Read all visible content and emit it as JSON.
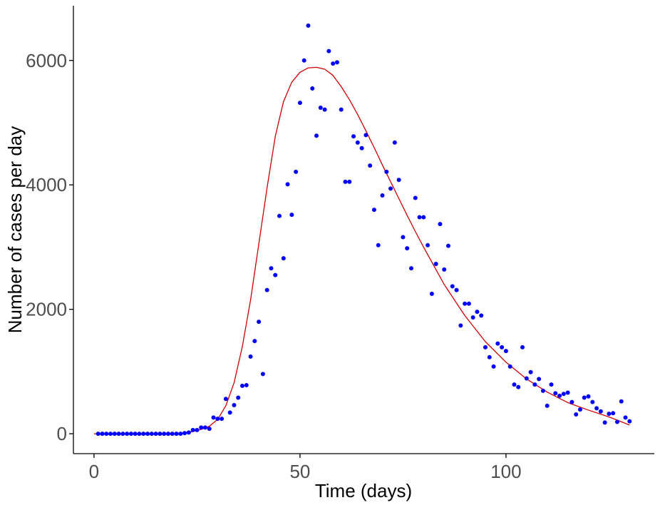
{
  "chart_data": {
    "type": "scatter",
    "xlabel": "Time (days)",
    "ylabel": "Number of cases per day",
    "xlim": [
      -5,
      136
    ],
    "ylim": [
      -320,
      6880
    ],
    "x_ticks": [
      0,
      50,
      100
    ],
    "y_ticks": [
      0,
      2000,
      4000,
      6000
    ],
    "grid": false,
    "colors": {
      "points": "#0000ff",
      "fit": "#cc0000",
      "axis": "#000000",
      "ticks_text": "#4d4d4d"
    },
    "series": [
      {
        "kind": "points",
        "x": [
          1,
          2,
          3,
          4,
          5,
          6,
          7,
          8,
          9,
          10,
          11,
          12,
          13,
          14,
          15,
          16,
          17,
          18,
          19,
          20,
          21,
          22,
          23,
          24,
          25,
          26,
          27,
          28,
          29,
          30,
          31,
          32,
          33,
          34,
          35,
          36,
          37,
          38,
          39,
          40,
          41,
          42,
          43,
          44,
          45,
          46,
          47,
          48,
          49,
          50,
          51,
          52,
          53,
          54,
          55,
          56,
          57,
          58,
          59,
          60,
          61,
          62,
          63,
          64,
          65,
          66,
          67,
          68,
          69,
          70,
          71,
          72,
          73,
          74,
          75,
          76,
          77,
          78,
          79,
          80,
          81,
          82,
          83,
          84,
          85,
          86,
          87,
          88,
          89,
          90,
          91,
          92,
          93,
          94,
          95,
          96,
          97,
          98,
          99,
          100,
          101,
          102,
          103,
          104,
          105,
          106,
          107,
          108,
          109,
          110,
          111,
          112,
          113,
          114,
          115,
          116,
          117,
          118,
          119,
          120,
          121,
          122,
          123,
          124,
          125,
          126,
          127,
          128,
          129,
          130
        ],
        "y": [
          0,
          0,
          0,
          0,
          0,
          0,
          0,
          0,
          0,
          0,
          0,
          0,
          0,
          0,
          0,
          0,
          0,
          0,
          0,
          0,
          0,
          10,
          20,
          60,
          60,
          100,
          100,
          80,
          260,
          240,
          240,
          560,
          340,
          460,
          580,
          770,
          780,
          1240,
          1490,
          1800,
          960,
          2310,
          2660,
          2550,
          3500,
          2820,
          4010,
          3520,
          4210,
          5320,
          6000,
          6560,
          5550,
          4790,
          5240,
          5210,
          6150,
          5950,
          5970,
          5210,
          4050,
          4050,
          4780,
          4680,
          4590,
          4800,
          4310,
          3600,
          3030,
          3830,
          4210,
          3940,
          4680,
          4080,
          3160,
          2980,
          2660,
          3790,
          3480,
          3480,
          3030,
          2250,
          2730,
          3370,
          2640,
          3020,
          2370,
          2310,
          1740,
          2090,
          2090,
          1870,
          1960,
          1900,
          1390,
          1230,
          1080,
          1450,
          1390,
          1330,
          1080,
          790,
          750,
          1390,
          890,
          990,
          790,
          880,
          690,
          450,
          790,
          650,
          610,
          640,
          660,
          510,
          310,
          390,
          580,
          600,
          510,
          410,
          360,
          180,
          320,
          330,
          190,
          520,
          260,
          200
        ]
      },
      {
        "kind": "fit-line",
        "x": [
          0,
          10,
          20,
          22,
          24,
          26,
          28,
          30,
          32,
          34,
          36,
          38,
          40,
          42,
          44,
          46,
          48,
          50,
          52,
          54,
          56,
          58,
          60,
          62,
          64,
          66,
          68,
          70,
          72,
          74,
          76,
          78,
          80,
          85,
          90,
          95,
          100,
          105,
          110,
          115,
          120,
          125,
          130
        ],
        "y": [
          0,
          0,
          5,
          15,
          35,
          70,
          120,
          230,
          450,
          820,
          1400,
          2150,
          3050,
          3950,
          4780,
          5340,
          5650,
          5810,
          5880,
          5890,
          5860,
          5760,
          5580,
          5370,
          5130,
          4870,
          4600,
          4320,
          4050,
          3780,
          3510,
          3250,
          3000,
          2400,
          1900,
          1480,
          1150,
          880,
          670,
          500,
          380,
          270,
          140
        ]
      }
    ]
  }
}
